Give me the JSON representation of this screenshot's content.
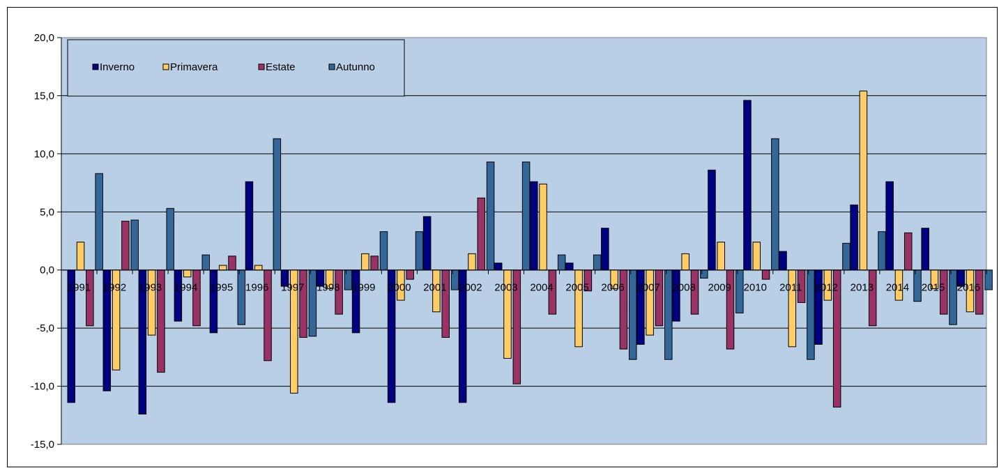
{
  "chart_data": {
    "type": "bar",
    "categories": [
      "1991",
      "1992",
      "1993",
      "1994",
      "1995",
      "1996",
      "1997",
      "1998",
      "1999",
      "2000",
      "2001",
      "2002",
      "2003",
      "2004",
      "2005",
      "2006",
      "2007",
      "2008",
      "2009",
      "2010",
      "2011",
      "2012",
      "2013",
      "2014",
      "2015",
      "2016"
    ],
    "series": [
      {
        "name": "Inverno",
        "color": "#000080",
        "values": [
          -11.4,
          -10.4,
          -12.4,
          -4.4,
          -5.4,
          7.6,
          -1.4,
          -1.4,
          -5.4,
          -11.4,
          4.6,
          -11.4,
          0.6,
          7.6,
          0.6,
          3.6,
          -6.4,
          -4.4,
          8.6,
          14.6,
          1.6,
          -6.4,
          5.6,
          7.6,
          3.6,
          -1.4
        ]
      },
      {
        "name": "Primavera",
        "color": "#FFCC66",
        "values": [
          2.4,
          -8.6,
          -5.6,
          -0.6,
          0.4,
          0.4,
          -10.6,
          -1.6,
          1.4,
          -2.6,
          -3.6,
          1.4,
          -7.6,
          7.4,
          -6.6,
          -1.6,
          -5.6,
          1.4,
          2.4,
          2.4,
          -6.6,
          -2.6,
          15.4,
          -2.6,
          -1.6,
          -3.6
        ]
      },
      {
        "name": "Estate",
        "color": "#993366",
        "values": [
          -4.8,
          4.2,
          -8.8,
          -4.8,
          1.2,
          -7.8,
          -5.8,
          -3.8,
          1.2,
          -0.8,
          -5.8,
          6.2,
          -9.8,
          -3.8,
          -1.8,
          -6.8,
          -4.8,
          -3.8,
          -6.8,
          -0.8,
          -2.8,
          -11.8,
          -4.8,
          3.2,
          -3.8,
          -3.8
        ]
      },
      {
        "name": "Autunno",
        "color": "#336699",
        "values": [
          8.3,
          4.3,
          5.3,
          1.3,
          -4.7,
          11.3,
          -5.7,
          -1.7,
          3.3,
          3.3,
          -1.7,
          9.3,
          9.3,
          1.3,
          1.3,
          -7.7,
          -7.7,
          -0.7,
          -3.7,
          11.3,
          -7.7,
          2.3,
          3.3,
          -2.7,
          -4.7,
          -1.7
        ]
      }
    ],
    "yticks": [
      "20,0",
      "15,0",
      "10,0",
      "5,0",
      "0,0",
      "-5,0",
      "-10,0",
      "-15,0"
    ],
    "ylim": [
      -15,
      20
    ],
    "grid": true,
    "plot_background": "#B9CFE6",
    "legend_position": "top-left",
    "title": "",
    "xlabel": "",
    "ylabel": ""
  }
}
